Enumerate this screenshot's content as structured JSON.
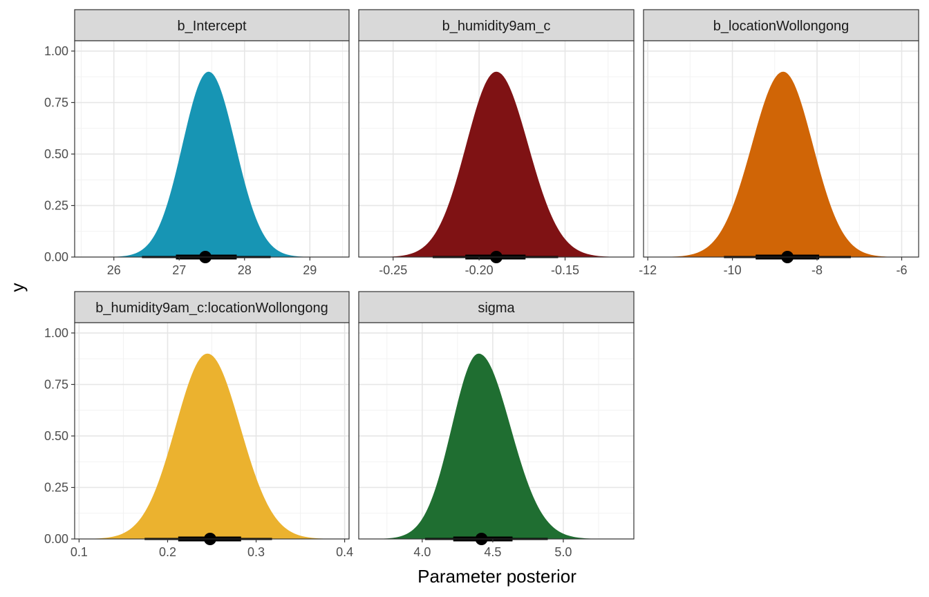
{
  "chart_data": {
    "type": "area",
    "xlabel": "Parameter posterior",
    "ylabel": "y",
    "shared_y": {
      "ylim": [
        0,
        1.05
      ],
      "ticks": [
        0,
        0.25,
        0.5,
        0.75,
        1
      ],
      "tick_labels": [
        "0.00",
        "0.25",
        "0.50",
        "0.75",
        "1.00"
      ]
    },
    "grid": true,
    "panels": [
      {
        "strip": "b_Intercept",
        "color": "#1795B4",
        "xlim": [
          25.4,
          29.6
        ],
        "x_ticks": [
          26,
          27,
          28,
          29
        ],
        "x_tick_labels": [
          "26",
          "27",
          "28",
          "29"
        ],
        "density": {
          "mode": 27.45,
          "sd_left": 0.4,
          "sd_right": 0.41,
          "peak": 0.9
        },
        "point_estimate": 27.4,
        "interval_66": [
          26.95,
          27.88
        ],
        "interval_95": [
          26.43,
          28.4
        ]
      },
      {
        "strip": "b_humidity9am_c",
        "color": "#7F1214",
        "xlim": [
          -0.27,
          -0.11
        ],
        "x_ticks": [
          -0.25,
          -0.2,
          -0.15
        ],
        "x_tick_labels": [
          "-0.25",
          "-0.20",
          "-0.15"
        ],
        "density": {
          "mode": -0.19,
          "sd_left": 0.0175,
          "sd_right": 0.0185,
          "peak": 0.9
        },
        "point_estimate": -0.19,
        "interval_66": [
          -0.208,
          -0.173
        ],
        "interval_95": [
          -0.227,
          -0.154
        ]
      },
      {
        "strip": "b_locationWollongong",
        "color": "#D06506",
        "xlim": [
          -12.1,
          -5.6
        ],
        "x_ticks": [
          -12,
          -10,
          -8,
          -6
        ],
        "x_tick_labels": [
          "-12",
          "-10",
          "-8",
          "-6"
        ],
        "density": {
          "mode": -8.8,
          "sd_left": 0.74,
          "sd_right": 0.7,
          "peak": 0.9
        },
        "point_estimate": -8.7,
        "interval_66": [
          -9.45,
          -7.95
        ],
        "interval_95": [
          -10.2,
          -7.2
        ]
      },
      {
        "strip": "b_humidity9am_c:locationWollongong",
        "color": "#EBB22F",
        "xlim": [
          0.095,
          0.405
        ],
        "x_ticks": [
          0.1,
          0.2,
          0.3,
          0.4
        ],
        "x_tick_labels": [
          "0.1",
          "0.2",
          "0.3",
          "0.4"
        ],
        "density": {
          "mode": 0.245,
          "sd_left": 0.036,
          "sd_right": 0.037,
          "peak": 0.9
        },
        "point_estimate": 0.248,
        "interval_66": [
          0.212,
          0.283
        ],
        "interval_95": [
          0.174,
          0.318
        ]
      },
      {
        "strip": "sigma",
        "color": "#1F6E31",
        "xlim": [
          3.55,
          5.5
        ],
        "x_ticks": [
          4.0,
          4.5,
          5.0
        ],
        "x_tick_labels": [
          "4.0",
          "4.5",
          "5.0"
        ],
        "density": {
          "mode": 4.4,
          "sd_left": 0.19,
          "sd_right": 0.225,
          "peak": 0.9
        },
        "point_estimate": 4.42,
        "interval_66": [
          4.22,
          4.64
        ],
        "interval_95": [
          4.02,
          4.89
        ]
      }
    ]
  }
}
